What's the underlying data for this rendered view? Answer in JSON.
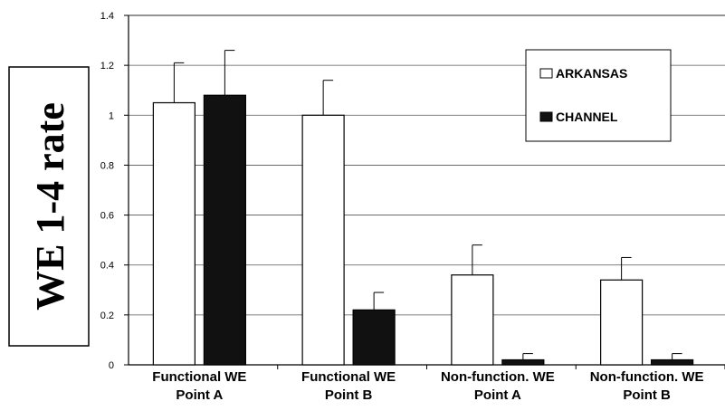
{
  "chart_data": {
    "type": "bar",
    "ylabel": "WE 1-4 rate",
    "categories": [
      [
        "Functional WE",
        "Point A"
      ],
      [
        "Functional WE",
        "Point B"
      ],
      [
        "Non-function. WE",
        "Point A"
      ],
      [
        "Non-function. WE",
        "Point B"
      ]
    ],
    "series": [
      {
        "name": "ARKANSAS",
        "color": "#ffffff",
        "values": [
          1.05,
          1.0,
          0.36,
          0.34
        ],
        "errors": [
          0.16,
          0.14,
          0.12,
          0.09
        ]
      },
      {
        "name": "CHANNEL",
        "color": "#111111",
        "values": [
          1.08,
          0.22,
          0.02,
          0.02
        ],
        "errors": [
          0.18,
          0.07,
          0.025,
          0.025
        ]
      }
    ],
    "ylim": [
      0,
      1.4
    ],
    "yticks": [
      "0",
      "0.2",
      "0.4",
      "0.6",
      "0.8",
      "1",
      "1.2",
      "1.4"
    ],
    "grid": true,
    "legend_position": "top-right"
  }
}
